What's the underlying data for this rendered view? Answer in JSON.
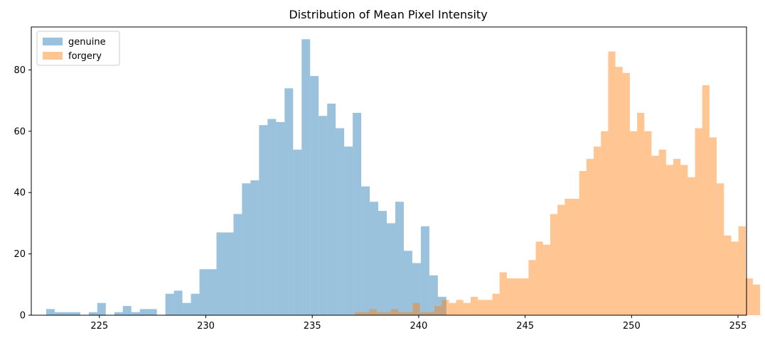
{
  "chart_data": {
    "type": "histogram",
    "title": "Distribution of Mean Pixel Intensity",
    "xlabel": "",
    "ylabel": "",
    "xlim": [
      221.8,
      255.4
    ],
    "ylim": [
      0,
      94
    ],
    "xticks": [
      225,
      230,
      235,
      240,
      245,
      250,
      255
    ],
    "yticks": [
      0,
      20,
      40,
      60,
      80
    ],
    "grid": false,
    "legend_position": "top-left",
    "series": [
      {
        "name": "genuine",
        "color": "#1f77b4",
        "alpha": 0.45,
        "bin_start": 222.5,
        "bin_width": 0.4,
        "counts": [
          2,
          1,
          1,
          1,
          0,
          1,
          4,
          0,
          1,
          3,
          1,
          2,
          2,
          0,
          7,
          8,
          4,
          7,
          15,
          15,
          27,
          27,
          33,
          43,
          44,
          62,
          64,
          63,
          74,
          54,
          90,
          78,
          65,
          69,
          61,
          55,
          66,
          42,
          37,
          34,
          30,
          37,
          21,
          17,
          29,
          13,
          6
        ]
      },
      {
        "name": "forgery",
        "color": "#ff7f0e",
        "alpha": 0.45,
        "bin_start": 237.0,
        "bin_width": 0.34,
        "counts": [
          1,
          1,
          2,
          1,
          1,
          2,
          1,
          1,
          4,
          1,
          1,
          3,
          5,
          4,
          5,
          4,
          6,
          5,
          5,
          7,
          14,
          12,
          12,
          12,
          18,
          24,
          23,
          33,
          36,
          38,
          38,
          47,
          51,
          55,
          60,
          86,
          81,
          79,
          60,
          66,
          60,
          52,
          54,
          49,
          51,
          49,
          45,
          61,
          75,
          58,
          43,
          26,
          24,
          29,
          12,
          10
        ]
      }
    ]
  }
}
